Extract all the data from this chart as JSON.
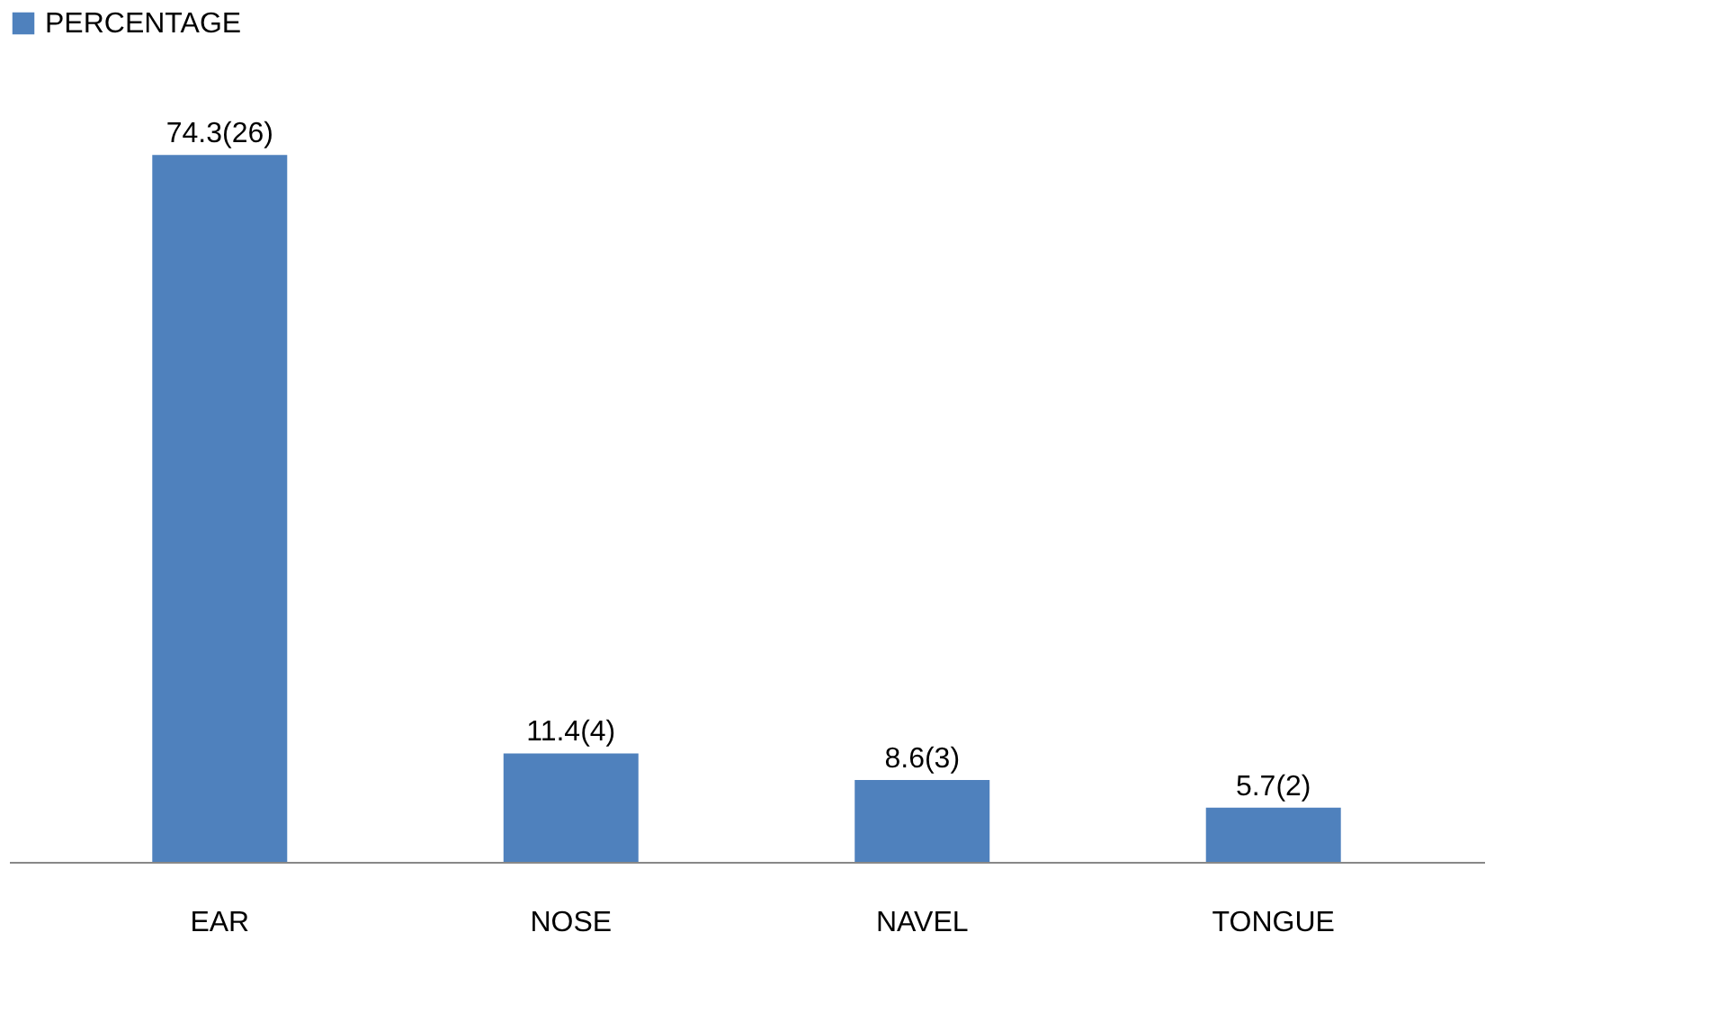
{
  "chart_data": {
    "type": "bar",
    "categories": [
      "EAR",
      "NOSE",
      "NAVEL",
      "TONGUE"
    ],
    "series": [
      {
        "name": "PERCENTAGE",
        "color": "#4f81bd",
        "values": [
          74.3,
          11.4,
          8.6,
          5.7
        ],
        "value_labels": [
          "74.3(26)",
          "11.4(4)",
          "8.6(3)",
          "5.7(2)"
        ]
      }
    ],
    "legend": "top",
    "grid": false,
    "tick_labels": "x"
  }
}
